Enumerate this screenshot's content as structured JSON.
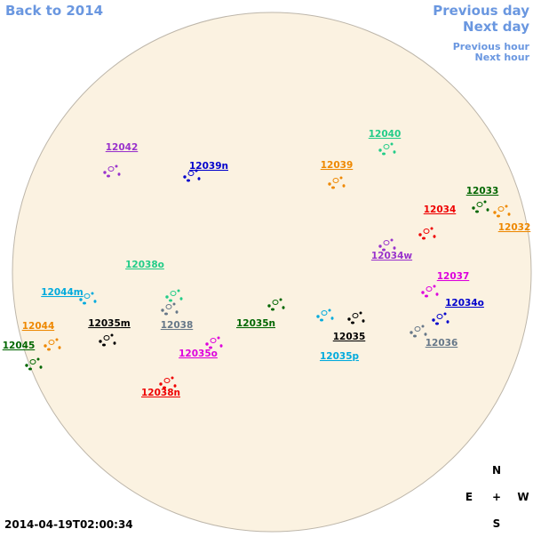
{
  "nav": {
    "back": "Back to 2014",
    "previous_day": "Previous day",
    "next_day": "Next day",
    "previous_hour": "Previous hour",
    "next_hour": "Next hour"
  },
  "regions": [
    {
      "label": "12042",
      "color": "#9933cc"
    },
    {
      "label": "12039n",
      "color": "#0000cc"
    },
    {
      "label": "12040",
      "color": "#22cc88"
    },
    {
      "label": "12039",
      "color": "#ee8800"
    },
    {
      "label": "12033",
      "color": "#006600"
    },
    {
      "label": "12034",
      "color": "#ee0000"
    },
    {
      "label": "12032",
      "color": "#ee8800"
    },
    {
      "label": "12034w",
      "color": "#9933cc"
    },
    {
      "label": "12038o",
      "color": "#22cc88"
    },
    {
      "label": "12044m",
      "color": "#00aadd"
    },
    {
      "label": "12037",
      "color": "#dd00dd"
    },
    {
      "label": "12034o",
      "color": "#0000cc"
    },
    {
      "label": "12035m",
      "color": "#000000"
    },
    {
      "label": "12038",
      "color": "#667788"
    },
    {
      "label": "12035n",
      "color": "#006600"
    },
    {
      "label": "12044",
      "color": "#ee8800"
    },
    {
      "label": "12035",
      "color": "#000000"
    },
    {
      "label": "12036",
      "color": "#667788"
    },
    {
      "label": "12045",
      "color": "#006600"
    },
    {
      "label": "12035o",
      "color": "#dd00dd"
    },
    {
      "label": "12035p",
      "color": "#00aadd"
    },
    {
      "label": "12038n",
      "color": "#ee0000"
    }
  ],
  "compass": {
    "north": "N",
    "east": "E",
    "center": "+",
    "west": "W",
    "south": "S"
  },
  "timestamp": "2014-04-19T02:00:34"
}
